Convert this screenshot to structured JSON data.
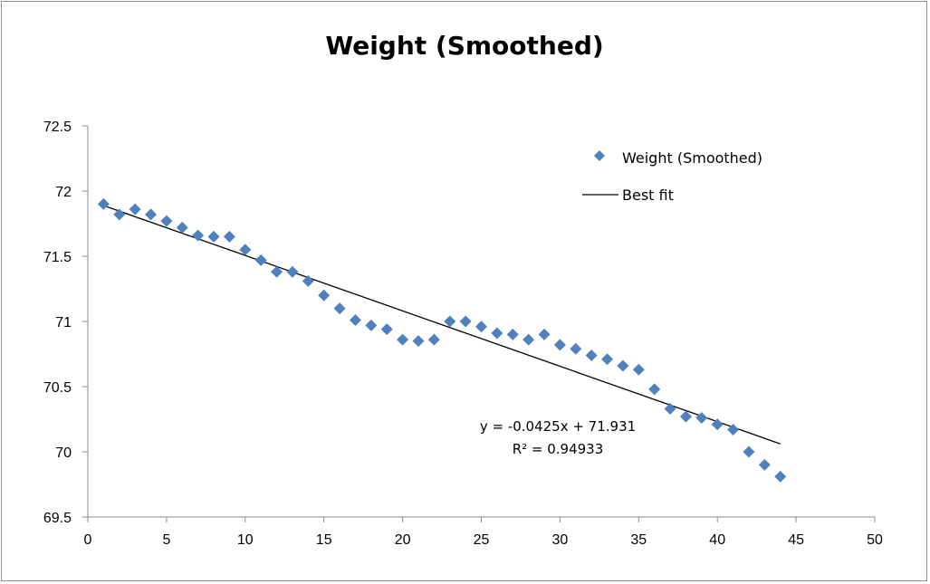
{
  "chart_data": {
    "type": "scatter",
    "title": "Weight (Smoothed)",
    "xlabel": "",
    "ylabel": "",
    "xlim": [
      0,
      50
    ],
    "ylim": [
      69.5,
      72.5
    ],
    "xticks": [
      0,
      5,
      10,
      15,
      20,
      25,
      30,
      35,
      40,
      45,
      50
    ],
    "yticks": [
      69.5,
      70,
      70.5,
      71,
      71.5,
      72,
      72.5
    ],
    "grid": false,
    "legend_position": "top-right",
    "series": [
      {
        "name": "Weight (Smoothed)",
        "type": "scatter",
        "marker": "diamond",
        "color": "#4f81bd",
        "x": [
          1,
          2,
          3,
          4,
          5,
          6,
          7,
          8,
          9,
          10,
          11,
          12,
          13,
          14,
          15,
          16,
          17,
          18,
          19,
          20,
          21,
          22,
          23,
          24,
          25,
          26,
          27,
          28,
          29,
          30,
          31,
          32,
          33,
          34,
          35,
          36,
          37,
          38,
          39,
          40,
          41,
          42,
          43,
          44
        ],
        "y": [
          71.9,
          71.82,
          71.86,
          71.82,
          71.77,
          71.72,
          71.66,
          71.65,
          71.65,
          71.55,
          71.47,
          71.38,
          71.38,
          71.31,
          71.2,
          71.1,
          71.01,
          70.97,
          70.94,
          70.86,
          70.85,
          70.86,
          71.0,
          71.0,
          70.96,
          70.91,
          70.9,
          70.86,
          70.9,
          70.82,
          70.79,
          70.74,
          70.71,
          70.66,
          70.63,
          70.48,
          70.33,
          70.27,
          70.26,
          70.21,
          70.17,
          70.0,
          69.9,
          69.81
        ]
      },
      {
        "name": "Best fit",
        "type": "line",
        "color": "#000000",
        "x": [
          1,
          44
        ],
        "y": [
          71.8885,
          70.061
        ]
      }
    ],
    "annotations": [
      "y = -0.0425x + 71.931",
      "R² = 0.94933"
    ]
  }
}
